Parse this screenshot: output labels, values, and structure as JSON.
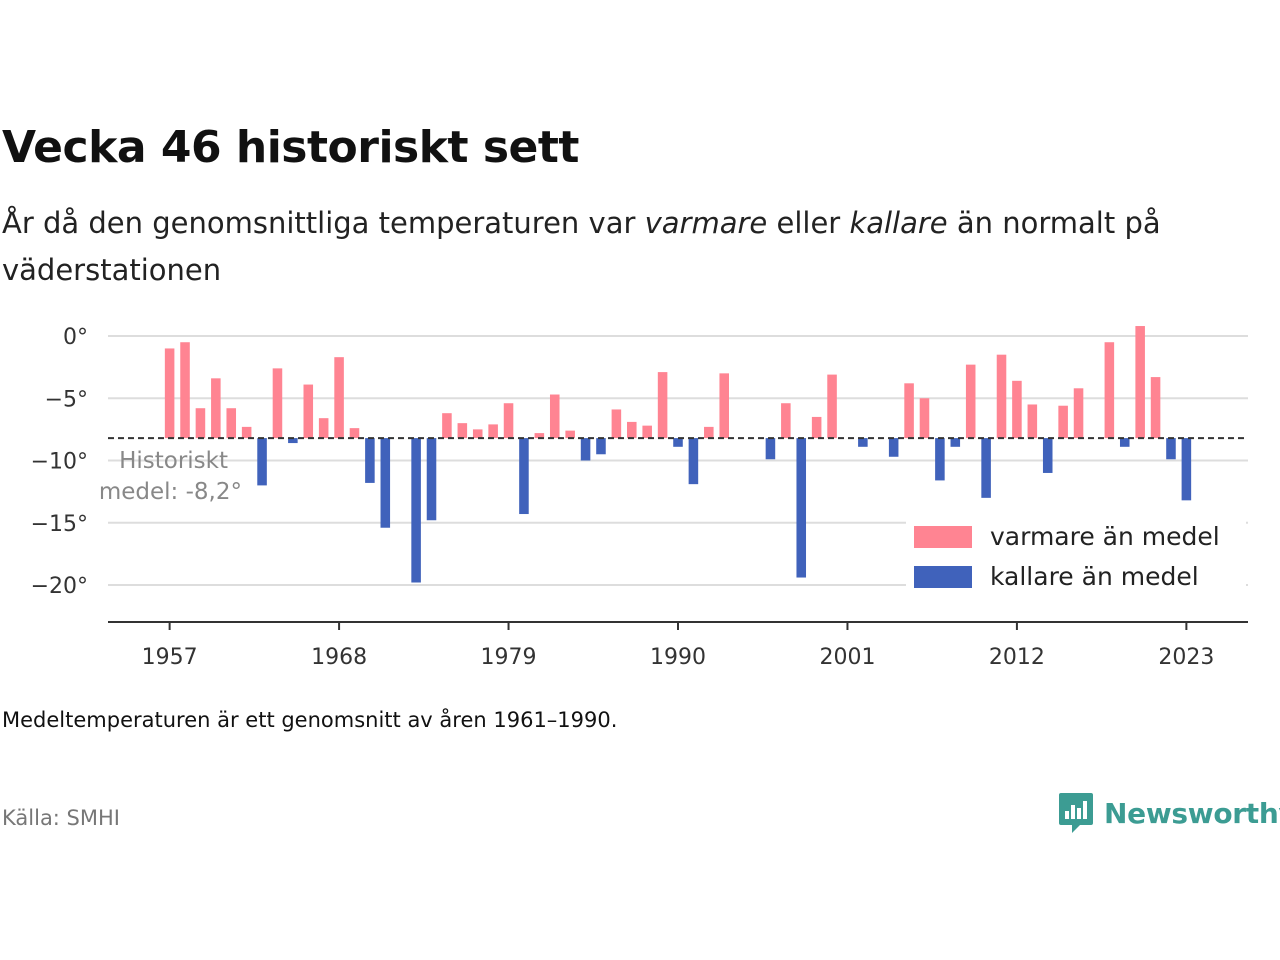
{
  "title": "Vecka 46 historiskt sett",
  "subtitle": {
    "part1": "År då den genomsnittliga temperaturen var ",
    "warm_word": "varmare",
    "part2": " eller ",
    "cold_word": "kallare",
    "part3": " än normalt på väderstationen"
  },
  "note": "Medeltemperaturen är ett genomsnitt av åren 1961–1990.",
  "source": "Källa: SMHI",
  "brand": "Newsworthy",
  "colors": {
    "warm": "#ff8492",
    "cold": "#4062bb",
    "brand": "#3c9c93"
  },
  "chart_data": {
    "type": "bar",
    "baseline": -8.2,
    "baseline_label": [
      "Historiskt",
      "medel: -8,2°"
    ],
    "y_ticks": [
      0,
      -5,
      -10,
      -15,
      -20
    ],
    "y_tick_labels": [
      "0°",
      "−5°",
      "−10°",
      "−15°",
      "−20°"
    ],
    "ylim": [
      -23,
      1
    ],
    "x_range": [
      1953,
      2027
    ],
    "x_ticks": [
      1957,
      1968,
      1979,
      1990,
      2001,
      2012,
      2023
    ],
    "x_tick_labels": [
      "1957",
      "1968",
      "1979",
      "1990",
      "2001",
      "2012",
      "2023"
    ],
    "legend": {
      "position": "bottom-right",
      "warm_label": "varmare än medel",
      "cold_label": "kallare än medel"
    },
    "x": [
      1957,
      1958,
      1959,
      1960,
      1961,
      1962,
      1963,
      1964,
      1965,
      1966,
      1967,
      1968,
      1969,
      1970,
      1971,
      1972,
      1973,
      1974,
      1975,
      1976,
      1977,
      1978,
      1979,
      1980,
      1981,
      1982,
      1983,
      1984,
      1985,
      1986,
      1987,
      1988,
      1989,
      1990,
      1991,
      1992,
      1993,
      1994,
      1995,
      1996,
      1997,
      1998,
      1999,
      2000,
      2001,
      2002,
      2003,
      2004,
      2005,
      2006,
      2007,
      2008,
      2009,
      2010,
      2011,
      2012,
      2013,
      2014,
      2015,
      2016,
      2017,
      2018,
      2019,
      2020,
      2021,
      2022,
      2023
    ],
    "values": [
      -1.0,
      -0.5,
      -5.8,
      -3.4,
      -5.8,
      -7.3,
      -12.0,
      -2.6,
      -8.6,
      -3.9,
      -6.6,
      -1.7,
      -7.4,
      -11.8,
      -15.4,
      null,
      -19.8,
      -14.8,
      -6.2,
      -7.0,
      -7.5,
      -7.1,
      -5.4,
      -14.3,
      -7.8,
      -4.7,
      -7.6,
      -10.0,
      -9.5,
      -5.9,
      -6.9,
      -7.2,
      -2.9,
      -8.9,
      -11.9,
      -7.3,
      -3.0,
      null,
      null,
      -9.9,
      -5.4,
      -19.4,
      -6.5,
      -3.1,
      null,
      -8.9,
      null,
      -9.7,
      -3.8,
      -5.0,
      -11.6,
      -8.9,
      -2.3,
      -13.0,
      -1.5,
      -3.6,
      -5.5,
      -11.0,
      -5.6,
      -4.2,
      null,
      -0.5,
      -8.9,
      0.8,
      -3.3,
      -9.9,
      -13.2
    ]
  }
}
